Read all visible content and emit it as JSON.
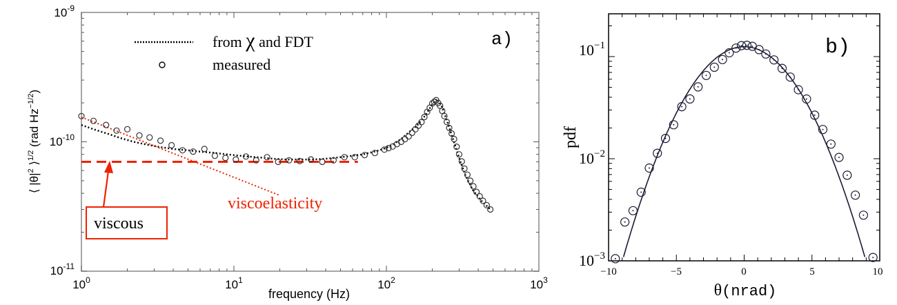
{
  "colors": {
    "annotation": "#ee2200",
    "series": "#000000",
    "curve": "#1a1a33",
    "points": "#333333"
  },
  "chart_data": [
    {
      "type": "scatter",
      "panel_label": "a)",
      "xscale": "log",
      "yscale": "log",
      "xlim": [
        1,
        1000
      ],
      "ylim": [
        1e-11,
        1e-09
      ],
      "xlabel": "frequency (Hz)",
      "ylabel": {
        "pre": "⟨ |θ|",
        "sup1": "2",
        "mid": " ⟩",
        "sup2": "1/2",
        "post": " (rad Hz",
        "sup3": "−1/2",
        "end": ")"
      },
      "grid": false,
      "xticks": [
        {
          "base": "10",
          "exp": "0"
        },
        {
          "base": "10",
          "exp": "1"
        },
        {
          "base": "10",
          "exp": "2"
        },
        {
          "base": "10",
          "exp": "3"
        }
      ],
      "yticks": [
        {
          "base": "10",
          "exp": "-11"
        },
        {
          "base": "10",
          "exp": "-10"
        },
        {
          "base": "10",
          "exp": "-9"
        }
      ],
      "legend": {
        "placement": "top-left",
        "entries": [
          {
            "pre": "from ",
            "chi": "χ",
            "post": " and FDT",
            "style": "dotted line"
          },
          {
            "label": "measured",
            "marker": "o"
          }
        ]
      },
      "annotations": {
        "viscoelasticity": "viscoelasticity",
        "viscous": "viscous"
      },
      "series": [
        {
          "name": "from χ and FDT",
          "style": "dotted",
          "x": [
            1.0,
            1.2,
            1.5,
            1.8,
            2.2,
            2.7,
            3.3,
            4.0,
            5.0,
            6.0,
            7.5,
            9.0,
            11.0,
            14.0,
            18.0,
            22.0,
            27.0,
            33.0,
            40.0,
            50.0,
            60.0,
            70.0,
            80.0,
            90.0,
            100.0,
            110.0,
            125.0,
            140.0,
            160.0,
            180.0,
            200.0,
            215.0,
            230.0,
            250.0,
            270.0,
            300.0,
            330.0,
            370.0,
            420.0,
            480.0
          ],
          "y": [
            1.35e-10,
            1.25e-10,
            1.15e-10,
            1.07e-10,
            1e-10,
            9.5e-11,
            9.1e-11,
            8.8e-11,
            8.6e-11,
            8.4e-11,
            8.2e-11,
            8e-11,
            7.8e-11,
            7.6e-11,
            7.4e-11,
            7.3e-11,
            7.3e-11,
            7.3e-11,
            7.4e-11,
            7.6e-11,
            7.8e-11,
            8e-11,
            8.3e-11,
            8.6e-11,
            9e-11,
            9.5e-11,
            1.05e-10,
            1.18e-10,
            1.35e-10,
            1.6e-10,
            1.95e-10,
            2.15e-10,
            1.9e-10,
            1.45e-10,
            1.1e-10,
            7.5e-11,
            5.5e-11,
            4.2e-11,
            3.5e-11,
            3e-11
          ]
        },
        {
          "name": "measured",
          "style": "open circles",
          "x": [
            1.0,
            1.2,
            1.45,
            1.7,
            2.0,
            2.4,
            2.8,
            3.3,
            3.9,
            4.6,
            5.4,
            6.4,
            7.5,
            8.8,
            10.3,
            12.0,
            14.0,
            16.5,
            19.5,
            23.0,
            27.0,
            32.0,
            38.0,
            45.0,
            53.0,
            62.0,
            72.0,
            84.0,
            97.0,
            110.0,
            125.0,
            140.0,
            155.0,
            170.0,
            185.0,
            200.0,
            212.0,
            225.0,
            240.0,
            258.0,
            278.0,
            300.0,
            325.0,
            355.0,
            390.0,
            430.0,
            480.0
          ],
          "y": [
            1.58e-10,
            1.45e-10,
            1.35e-10,
            1.22e-10,
            1.25e-10,
            1.12e-10,
            1.08e-10,
            1.02e-10,
            9.4e-11,
            8.6e-11,
            8.4e-11,
            8.8e-11,
            7.8e-11,
            7.5e-11,
            7.3e-11,
            7.7e-11,
            7.2e-11,
            7.6e-11,
            7e-11,
            7.2e-11,
            7.1e-11,
            7.3e-11,
            7e-11,
            7.2e-11,
            7.6e-11,
            7.6e-11,
            7.9e-11,
            8.2e-11,
            8.7e-11,
            9.2e-11,
            1e-10,
            1.1e-10,
            1.25e-10,
            1.42e-10,
            1.7e-10,
            1.98e-10,
            2.1e-10,
            1.9e-10,
            1.58e-10,
            1.28e-10,
            1.05e-10,
            8e-11,
            6.2e-11,
            5e-11,
            4.1e-11,
            3.5e-11,
            3e-11
          ]
        },
        {
          "name": "viscoelasticity",
          "style": "dotted line",
          "x": [
            1.0,
            20.0
          ],
          "y": [
            1.55e-10,
            3.85e-11
          ]
        },
        {
          "name": "viscous",
          "style": "dashed line",
          "x": [
            1.0,
            65.0
          ],
          "y": [
            7e-11,
            7e-11
          ]
        }
      ]
    },
    {
      "type": "scatter",
      "panel_label": "b)",
      "yscale": "log",
      "xlim": [
        -10,
        10
      ],
      "ylim": [
        0.001,
        0.2
      ],
      "xlabel": {
        "sym": "θ",
        "rest": "(nrad)"
      },
      "ylabel": "pdf",
      "grid": false,
      "xticks": [
        "−10",
        "−5",
        "0",
        "5",
        "10"
      ],
      "yticks": [
        {
          "base": "10",
          "exp": "−3"
        },
        {
          "base": "10",
          "exp": "−2"
        },
        {
          "base": "10",
          "exp": "−1"
        }
      ],
      "series": [
        {
          "name": "fit",
          "style": "solid line",
          "model": "gaussian",
          "peak": 0.125,
          "sigma": 2.89,
          "mean": 0
        },
        {
          "name": "data",
          "style": "open circles",
          "x": [
            -9.5,
            -8.8,
            -8.2,
            -7.6,
            -7.0,
            -6.4,
            -5.8,
            -5.2,
            -4.6,
            -4.0,
            -3.4,
            -2.8,
            -2.2,
            -1.6,
            -1.1,
            -0.6,
            -0.2,
            0.2,
            0.6,
            1.1,
            1.6,
            2.2,
            2.8,
            3.4,
            4.0,
            4.6,
            5.2,
            5.8,
            6.4,
            7.0,
            7.6,
            8.2,
            8.8,
            9.5
          ],
          "y": [
            0.00105,
            0.0024,
            0.0031,
            0.0047,
            0.0081,
            0.0113,
            0.0158,
            0.0215,
            0.0323,
            0.0385,
            0.0505,
            0.0654,
            0.0787,
            0.0936,
            0.109,
            0.121,
            0.128,
            0.129,
            0.126,
            0.117,
            0.106,
            0.0928,
            0.0767,
            0.063,
            0.0474,
            0.0384,
            0.0267,
            0.0193,
            0.0139,
            0.0103,
            0.0069,
            0.0044,
            0.0028,
            0.00108
          ]
        }
      ]
    }
  ]
}
